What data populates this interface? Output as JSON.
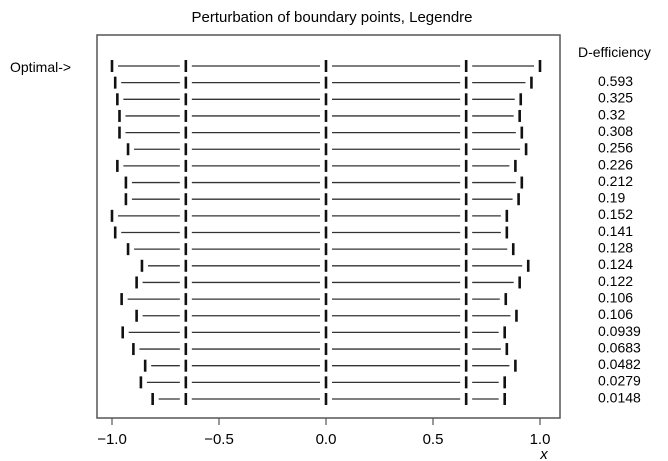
{
  "chart_data": {
    "type": "scatter",
    "title": "Perturbation of boundary points, Legendre",
    "xlabel": "x",
    "xlim": [
      -1.1,
      1.1
    ],
    "xticks": [
      -1.0,
      -0.5,
      0.0,
      0.5,
      1.0
    ],
    "xtick_labels": [
      "−1.0",
      "−0.5",
      "0.0",
      "0.5",
      "1.0"
    ],
    "left_label": "Optimal->",
    "right_header": "D-efficiency",
    "efficiencies": [
      "0.593",
      "0.325",
      "0.32",
      "0.308",
      "0.256",
      "0.226",
      "0.212",
      "0.19",
      "0.152",
      "0.141",
      "0.128",
      "0.124",
      "0.122",
      "0.106",
      "0.106",
      "0.0939",
      "0.0683",
      "0.0482",
      "0.0279",
      "0.0148"
    ],
    "designs": [
      [
        -1.0,
        -0.655,
        0.0,
        0.655,
        1.0
      ],
      [
        -0.985,
        -0.655,
        0.0,
        0.655,
        0.96
      ],
      [
        -0.975,
        -0.655,
        0.0,
        0.655,
        0.91
      ],
      [
        -0.965,
        -0.655,
        0.0,
        0.655,
        0.905
      ],
      [
        -0.965,
        -0.655,
        0.0,
        0.655,
        0.915
      ],
      [
        -0.925,
        -0.655,
        0.0,
        0.655,
        0.935
      ],
      [
        -0.975,
        -0.655,
        0.0,
        0.655,
        0.885
      ],
      [
        -0.935,
        -0.655,
        0.0,
        0.655,
        0.915
      ],
      [
        -0.935,
        -0.655,
        0.0,
        0.655,
        0.9
      ],
      [
        -1.0,
        -0.655,
        0.0,
        0.655,
        0.845
      ],
      [
        -0.985,
        -0.655,
        0.0,
        0.655,
        0.845
      ],
      [
        -0.925,
        -0.655,
        0.0,
        0.655,
        0.875
      ],
      [
        -0.86,
        -0.655,
        0.0,
        0.655,
        0.945
      ],
      [
        -0.885,
        -0.655,
        0.0,
        0.655,
        0.905
      ],
      [
        -0.955,
        -0.655,
        0.0,
        0.655,
        0.84
      ],
      [
        -0.885,
        -0.655,
        0.0,
        0.655,
        0.89
      ],
      [
        -0.95,
        -0.655,
        0.0,
        0.655,
        0.835
      ],
      [
        -0.9,
        -0.655,
        0.0,
        0.655,
        0.845
      ],
      [
        -0.845,
        -0.655,
        0.0,
        0.655,
        0.885
      ],
      [
        -0.865,
        -0.655,
        0.0,
        0.655,
        0.835
      ],
      [
        -0.81,
        -0.655,
        0.0,
        0.655,
        0.835
      ]
    ],
    "marker": "vertical-tick",
    "grid": false,
    "colors": {
      "line": "#333333",
      "frame": "#555555"
    }
  }
}
